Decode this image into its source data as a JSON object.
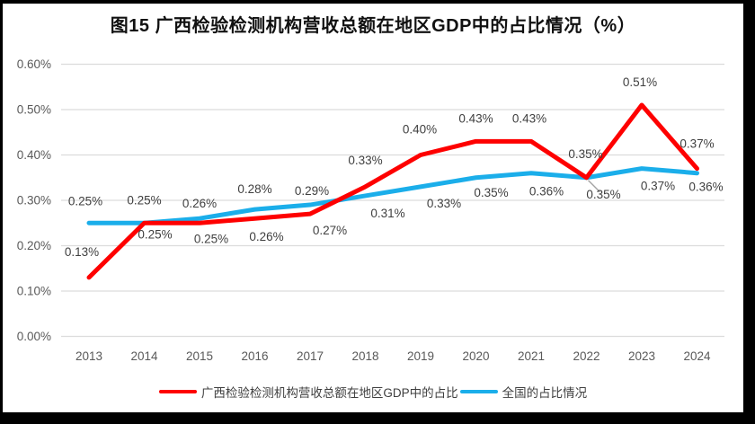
{
  "title": "图15 广西检验检测机构营收总额在地区GDP中的占比情况（%）",
  "chart_data": {
    "type": "line",
    "categories": [
      "2013",
      "2014",
      "2015",
      "2016",
      "2017",
      "2018",
      "2019",
      "2020",
      "2021",
      "2022",
      "2023",
      "2024"
    ],
    "xlabel": "",
    "ylabel": "",
    "ylim": [
      0,
      0.6
    ],
    "grid": true,
    "legend_position": "bottom",
    "yticks": [
      {
        "value": 0.6,
        "label": "0.60%"
      },
      {
        "value": 0.5,
        "label": "0.50%"
      },
      {
        "value": 0.4,
        "label": "0.40%"
      },
      {
        "value": 0.3,
        "label": "0.30%"
      },
      {
        "value": 0.2,
        "label": "0.20%"
      },
      {
        "value": 0.1,
        "label": "0.10%"
      },
      {
        "value": 0.0,
        "label": "0.00%"
      }
    ],
    "series": [
      {
        "id": "national",
        "name": "全国的占比情况",
        "color": "#1BAEEA",
        "values": [
          0.25,
          0.25,
          0.26,
          0.28,
          0.29,
          0.31,
          0.33,
          0.35,
          0.36,
          0.35,
          0.37,
          0.36
        ],
        "labels": [
          "0.25%",
          "0.25%",
          "0.26%",
          "0.28%",
          "0.29%",
          "0.31%",
          "0.33%",
          "0.35%",
          "0.36%",
          "0.35%",
          "0.37%",
          "0.36%"
        ],
        "label_dx": [
          -4,
          0,
          0,
          0,
          2,
          25,
          26,
          17,
          17,
          19,
          18,
          10
        ],
        "label_dy": [
          -20,
          -21,
          -12,
          -18,
          -11,
          24,
          23,
          21,
          25,
          23,
          24,
          20
        ]
      },
      {
        "id": "guangxi",
        "name": "广西检验检测机构营收总额在地区GDP中的占比",
        "color": "#FE0000",
        "values": [
          0.13,
          0.25,
          0.25,
          0.26,
          0.27,
          0.33,
          0.4,
          0.43,
          0.43,
          0.35,
          0.51,
          0.37
        ],
        "labels": [
          "0.13%",
          "0.25%",
          "0.25%",
          "0.26%",
          "0.27%",
          "0.33%",
          "0.40%",
          "0.43%",
          "0.43%",
          "0.35%",
          "0.51%",
          "0.37%"
        ],
        "label_dx": [
          -8,
          12,
          13,
          13,
          22,
          0,
          -1,
          0,
          -2,
          -1,
          -2,
          0
        ],
        "label_dy": [
          -24,
          17,
          22,
          25,
          23,
          -25,
          -24,
          -21,
          -21,
          -22,
          -21,
          -23
        ]
      }
    ],
    "annotations": {
      "leader_line": {
        "series_id": "national",
        "point_index": 9
      }
    }
  },
  "legend": [
    {
      "id": "guangxi",
      "label": "广西检验检测机构营收总额在地区GDP中的占比",
      "color": "#FE0000"
    },
    {
      "id": "national",
      "label": "全国的占比情况",
      "color": "#1BAEEA"
    }
  ],
  "colors": {
    "grid": "#DCDCDC",
    "axis_text": "#595959",
    "label_text": "#3F3F3F",
    "leader": "#A6A6A6",
    "frame": "#000000"
  }
}
